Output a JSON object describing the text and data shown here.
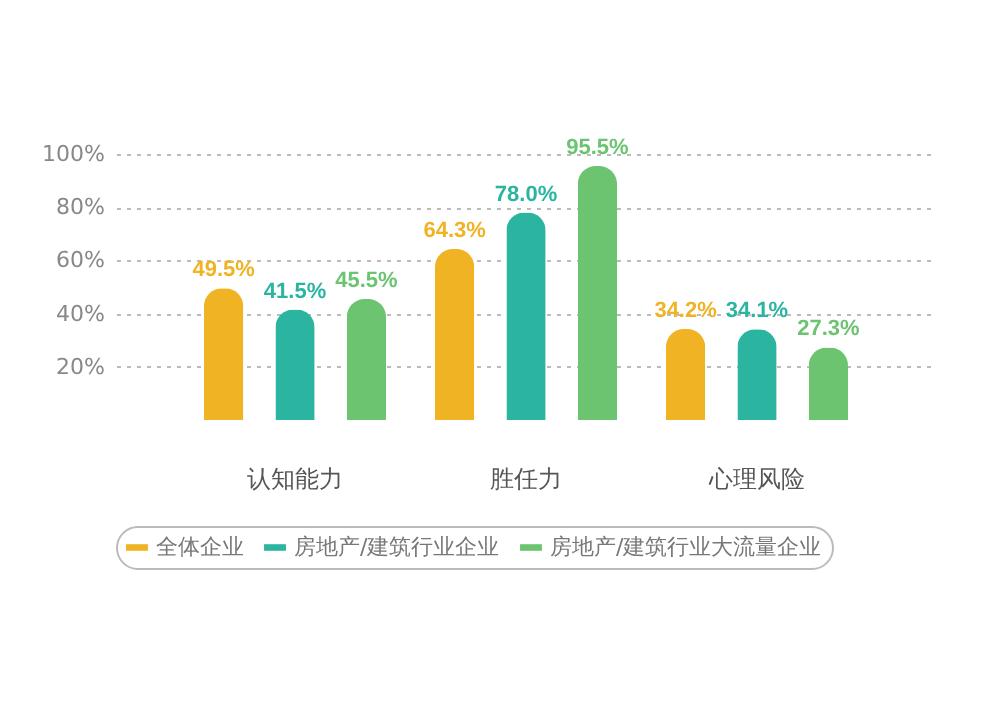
{
  "chart_data": {
    "type": "bar",
    "categories": [
      "认知能力",
      "胜任力",
      "心理风险"
    ],
    "series": [
      {
        "name": "全体企业",
        "color": "#f0b323",
        "values": [
          49.5,
          64.3,
          34.2
        ],
        "value_labels": [
          "49.5%",
          "64.3%",
          "34.2%"
        ]
      },
      {
        "name": "房地产/建筑行业企业",
        "color": "#2bb5a0",
        "values": [
          41.5,
          78.0,
          34.1
        ],
        "value_labels": [
          "41.5%",
          "78.0%",
          "34.1%"
        ]
      },
      {
        "name": "房地产/建筑行业大流量企业",
        "color": "#6cc471",
        "values": [
          45.5,
          95.5,
          27.3
        ],
        "value_labels": [
          "45.5%",
          "95.5%",
          "27.3%"
        ]
      }
    ],
    "ylim": [
      0,
      100
    ],
    "yticks": [
      {
        "value": 20,
        "label": "20%"
      },
      {
        "value": 40,
        "label": "40%"
      },
      {
        "value": 60,
        "label": "60%"
      },
      {
        "value": 80,
        "label": "80%"
      },
      {
        "value": 100,
        "label": "100%"
      }
    ],
    "grid": "y",
    "legend": "bottom"
  }
}
